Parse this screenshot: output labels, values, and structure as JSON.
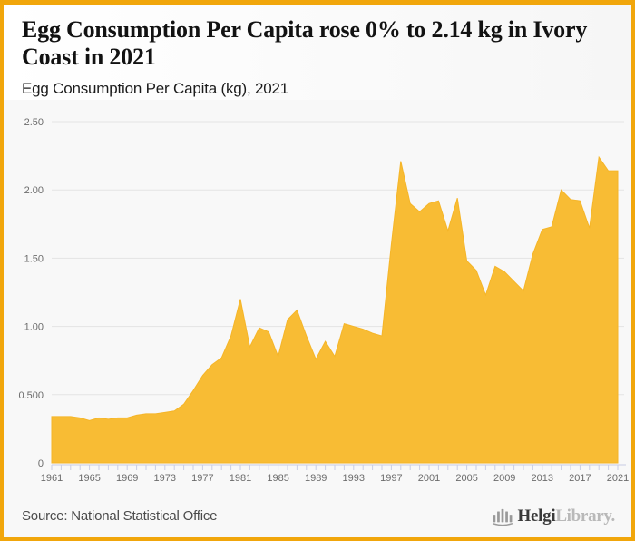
{
  "page": {
    "accent_color": "#F1A60B",
    "header_bg": "#FFFFFF",
    "chart_bg": "#F8F8F8"
  },
  "header": {
    "title": "Egg Consumption Per Capita rose 0% to 2.14 kg in Ivory Coast in 2021",
    "subtitle": "Egg Consumption Per Capita (kg), 2021"
  },
  "chart_data": {
    "type": "area",
    "title": "Egg Consumption Per Capita (kg), 2021",
    "xlabel": "",
    "ylabel": "",
    "ylim": [
      0,
      2.5
    ],
    "grid": true,
    "legend": "none",
    "fill_color": "#F8BC34",
    "line_color": "#F5B528",
    "grid_color": "#E4E4E4",
    "axis_color": "#C9CDE4",
    "tick_label_color": "#6b6b6b",
    "x": [
      1961,
      1962,
      1963,
      1964,
      1965,
      1966,
      1967,
      1968,
      1969,
      1970,
      1971,
      1972,
      1973,
      1974,
      1975,
      1976,
      1977,
      1978,
      1979,
      1980,
      1981,
      1982,
      1983,
      1984,
      1985,
      1986,
      1987,
      1988,
      1989,
      1990,
      1991,
      1992,
      1993,
      1994,
      1995,
      1996,
      1997,
      1998,
      1999,
      2000,
      2001,
      2002,
      2003,
      2004,
      2005,
      2006,
      2007,
      2008,
      2009,
      2010,
      2011,
      2012,
      2013,
      2014,
      2015,
      2016,
      2017,
      2018,
      2019,
      2020,
      2021
    ],
    "values": [
      0.34,
      0.34,
      0.34,
      0.33,
      0.31,
      0.33,
      0.32,
      0.33,
      0.33,
      0.35,
      0.36,
      0.36,
      0.37,
      0.38,
      0.43,
      0.53,
      0.64,
      0.72,
      0.77,
      0.93,
      1.2,
      0.85,
      0.99,
      0.96,
      0.78,
      1.05,
      1.12,
      0.93,
      0.76,
      0.89,
      0.78,
      1.02,
      1.0,
      0.98,
      0.95,
      0.93,
      1.6,
      2.21,
      1.9,
      1.84,
      1.9,
      1.92,
      1.7,
      1.94,
      1.48,
      1.41,
      1.23,
      1.44,
      1.4,
      1.33,
      1.26,
      1.53,
      1.71,
      1.73,
      2.0,
      1.93,
      1.92,
      1.72,
      2.24,
      2.14,
      2.14
    ],
    "y_ticks": {
      "values": [
        0,
        0.5,
        1.0,
        1.5,
        2.0,
        2.5
      ],
      "labels": [
        "0",
        "0.500",
        "1.00",
        "1.50",
        "2.00",
        "2.50"
      ]
    },
    "x_tick_labels": [
      "1961",
      "1965",
      "1969",
      "1973",
      "1977",
      "1981",
      "1985",
      "1989",
      "1993",
      "1997",
      "2001",
      "2005",
      "2009",
      "2013",
      "2017",
      "2021"
    ]
  },
  "footer": {
    "source": "Source: National Statistical Office",
    "logo_text_primary": "Helgi",
    "logo_text_secondary": "Library."
  }
}
